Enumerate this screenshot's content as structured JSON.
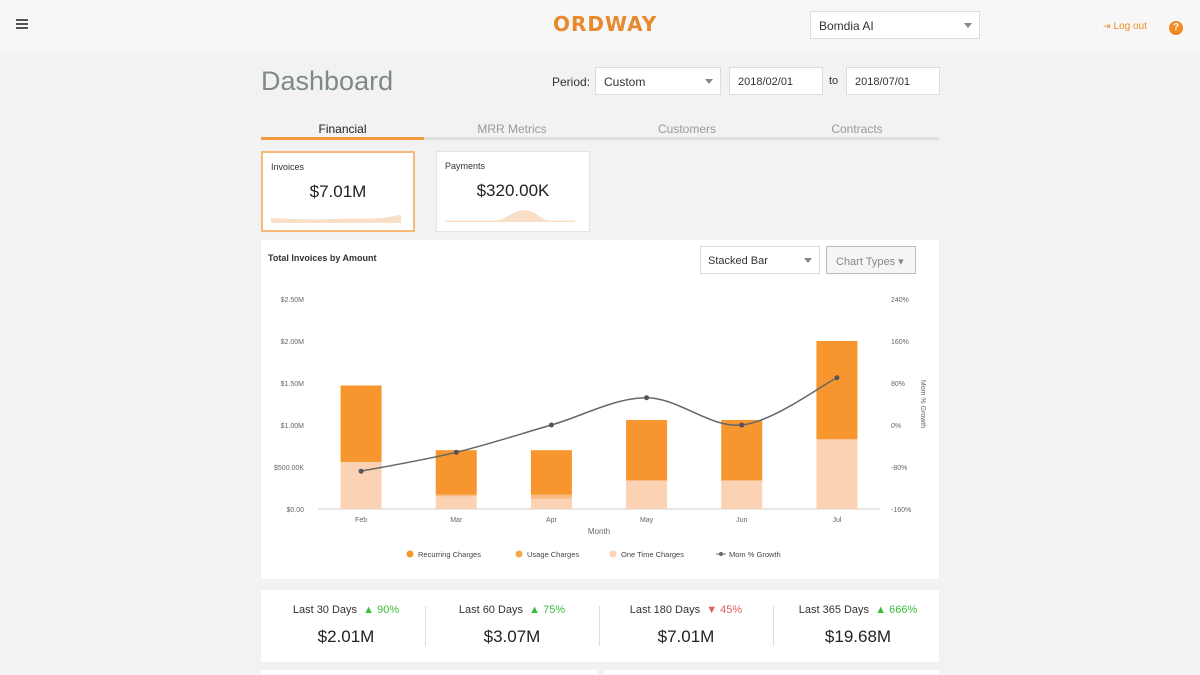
{
  "header": {
    "logo": "ORDWAY",
    "company": "Bomdia AI",
    "logout_label": "Log out",
    "logout_icon": "⇥",
    "help_label": "?"
  },
  "page": {
    "title": "Dashboard",
    "period_label": "Period:",
    "period_value": "Custom",
    "date_from": "2018/02/01",
    "to_label": "to",
    "date_to": "2018/07/01"
  },
  "tabs": [
    {
      "label": "Financial",
      "active": true
    },
    {
      "label": "MRR Metrics",
      "active": false
    },
    {
      "label": "Customers",
      "active": false
    },
    {
      "label": "Contracts",
      "active": false
    }
  ],
  "summary_cards": [
    {
      "label": "Invoices",
      "value": "$7.01M",
      "selected": true
    },
    {
      "label": "Payments",
      "value": "$320.00K",
      "selected": false
    }
  ],
  "chart_panel": {
    "title": "Total Invoices by Amount",
    "chart_type_value": "Stacked Bar",
    "chart_types_label": "Chart Types ▾"
  },
  "chart_data": {
    "type": "bar",
    "stacked": true,
    "categories": [
      "Feb",
      "Mar",
      "Apr",
      "May",
      "Jun",
      "Jul"
    ],
    "xlabel": "Month",
    "ylabel": "",
    "y2label": "Mom % Growth",
    "ylim": [
      0,
      2500000
    ],
    "y2lim": [
      -160,
      240
    ],
    "yticks": [
      "$0.00",
      "$500.00K",
      "$1.00M",
      "$1.50M",
      "$2.00M",
      "$2.50M"
    ],
    "y2ticks": [
      "-160%",
      "-80%",
      "0%",
      "80%",
      "160%",
      "240%"
    ],
    "series": [
      {
        "name": "One Time Charges",
        "color": "#fbd2b4",
        "values": [
          560000,
          150000,
          120000,
          340000,
          340000,
          830000
        ]
      },
      {
        "name": "Usage Charges",
        "color": "#f8bb84",
        "values": [
          0,
          20000,
          50000,
          0,
          0,
          0
        ]
      },
      {
        "name": "Recurring Charges",
        "color": "#f7962e",
        "values": [
          910000,
          530000,
          530000,
          720000,
          720000,
          1170000
        ]
      }
    ],
    "line_series": {
      "name": "Mom % Growth",
      "color": "#666666",
      "axis": "right",
      "values": [
        -88,
        -52,
        0,
        52,
        0,
        90
      ]
    },
    "legend": [
      {
        "name": "Recurring Charges",
        "color": "#f7962e",
        "shape": "dot"
      },
      {
        "name": "Usage Charges",
        "color": "#f8a54a",
        "shape": "dot"
      },
      {
        "name": "One Time Charges",
        "color": "#fbd2b4",
        "shape": "dot"
      },
      {
        "name": "Mom % Growth",
        "color": "#666666",
        "shape": "line"
      }
    ],
    "legend_position": "bottom-center",
    "grid": false
  },
  "stats": [
    {
      "label": "Last 30 Days",
      "change": "▲ 90%",
      "direction": "up",
      "value": "$2.01M"
    },
    {
      "label": "Last 60 Days",
      "change": "▲ 75%",
      "direction": "up",
      "value": "$3.07M"
    },
    {
      "label": "Last 180 Days",
      "change": "▼ 45%",
      "direction": "down",
      "value": "$7.01M"
    },
    {
      "label": "Last 365 Days",
      "change": "▲ 666%",
      "direction": "up",
      "value": "$19.68M"
    }
  ]
}
